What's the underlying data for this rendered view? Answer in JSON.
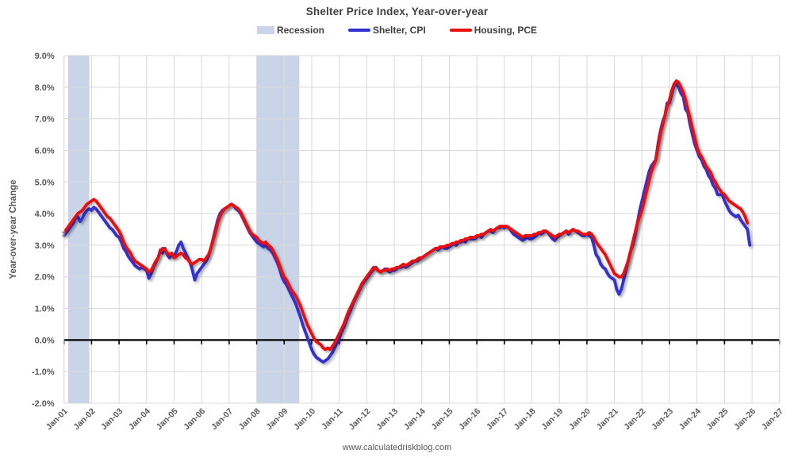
{
  "title": "Shelter Price Index, Year-over-year",
  "footer": "www.calculatedriskblog.com",
  "colors": {
    "recession_band": "#c9d4e8",
    "shelter_cpi": "#3030d0",
    "housing_pce": "#ec0f0f",
    "gridline": "#d9d9d9",
    "zero_line": "#000000",
    "tick_label": "#595959",
    "title_text": "#3f3f3f"
  },
  "legend": [
    {
      "label": "Recession",
      "type": "band",
      "color": "#c9d4e8"
    },
    {
      "label": "Shelter, CPI",
      "type": "line",
      "color": "#3030d0"
    },
    {
      "label": "Housing, PCE",
      "type": "line",
      "color": "#ec0f0f"
    }
  ],
  "y_axis": {
    "label": "Year-over-year Change",
    "min": -2.0,
    "max": 9.0,
    "step": 1.0,
    "ticks": [
      "9.0%",
      "8.0%",
      "7.0%",
      "6.0%",
      "5.0%",
      "4.0%",
      "3.0%",
      "2.0%",
      "1.0%",
      "0.0%",
      "-1.0%",
      "-2.0%"
    ]
  },
  "x_axis": {
    "ticks": [
      "Jan-01",
      "Jan-02",
      "Jan-03",
      "Jan-04",
      "Jan-05",
      "Jan-06",
      "Jan-07",
      "Jan-08",
      "Jan-09",
      "Jan-10",
      "Jan-11",
      "Jan-12",
      "Jan-13",
      "Jan-14",
      "Jan-15",
      "Jan-16",
      "Jan-17",
      "Jan-18",
      "Jan-19",
      "Jan-20",
      "Jan-21",
      "Jan-22",
      "Jan-23",
      "Jan-24",
      "Jan-25",
      "Jan-26",
      "Jan-27"
    ]
  },
  "chart_data": {
    "type": "line",
    "title": "Shelter Price Index, Year-over-year",
    "xlabel": "",
    "ylabel": "Year-over-year Change",
    "xlim": [
      2001,
      2027
    ],
    "ylim": [
      -2.0,
      9.0
    ],
    "grid": true,
    "legend_position": "top",
    "x_start_year": 2001,
    "x_step": "monthly",
    "recession_bands": [
      {
        "start": 2001.15,
        "end": 2001.92
      },
      {
        "start": 2008.0,
        "end": 2009.55
      }
    ],
    "series": [
      {
        "name": "Shelter, CPI",
        "color": "#3030d0",
        "values": [
          3.3,
          3.4,
          3.5,
          3.6,
          3.7,
          3.85,
          3.9,
          3.75,
          3.85,
          4.0,
          4.1,
          4.15,
          4.1,
          4.2,
          4.15,
          4.05,
          3.95,
          3.85,
          3.75,
          3.65,
          3.55,
          3.5,
          3.4,
          3.3,
          3.25,
          3.1,
          2.9,
          2.8,
          2.65,
          2.55,
          2.45,
          2.35,
          2.3,
          2.25,
          2.3,
          2.25,
          2.2,
          1.95,
          2.1,
          2.3,
          2.45,
          2.6,
          2.85,
          2.75,
          2.9,
          2.7,
          2.6,
          2.7,
          2.65,
          2.8,
          3.0,
          3.1,
          2.9,
          2.75,
          2.6,
          2.45,
          2.2,
          1.9,
          2.1,
          2.2,
          2.3,
          2.4,
          2.5,
          2.65,
          2.9,
          3.2,
          3.5,
          3.8,
          4.0,
          4.1,
          4.15,
          4.2,
          4.25,
          4.3,
          4.25,
          4.15,
          4.1,
          4.0,
          3.85,
          3.7,
          3.55,
          3.4,
          3.3,
          3.2,
          3.1,
          3.05,
          3.0,
          2.95,
          3.0,
          2.9,
          2.85,
          2.75,
          2.6,
          2.45,
          2.25,
          2.0,
          1.85,
          1.75,
          1.6,
          1.45,
          1.3,
          1.15,
          0.95,
          0.75,
          0.5,
          0.3,
          0.1,
          -0.1,
          -0.3,
          -0.45,
          -0.55,
          -0.6,
          -0.65,
          -0.7,
          -0.65,
          -0.6,
          -0.5,
          -0.4,
          -0.25,
          -0.1,
          0.05,
          0.25,
          0.4,
          0.6,
          0.8,
          0.95,
          1.15,
          1.3,
          1.45,
          1.6,
          1.75,
          1.85,
          1.95,
          2.05,
          2.15,
          2.25,
          2.3,
          2.2,
          2.15,
          2.2,
          2.25,
          2.2,
          2.15,
          2.2,
          2.2,
          2.25,
          2.3,
          2.3,
          2.35,
          2.3,
          2.35,
          2.4,
          2.45,
          2.5,
          2.5,
          2.55,
          2.6,
          2.65,
          2.7,
          2.75,
          2.8,
          2.85,
          2.9,
          2.85,
          2.9,
          2.95,
          2.9,
          2.9,
          2.95,
          3.0,
          3.05,
          3.0,
          3.1,
          3.1,
          3.15,
          3.1,
          3.2,
          3.2,
          3.2,
          3.2,
          3.25,
          3.3,
          3.25,
          3.35,
          3.4,
          3.45,
          3.45,
          3.4,
          3.5,
          3.55,
          3.55,
          3.6,
          3.55,
          3.6,
          3.55,
          3.45,
          3.35,
          3.3,
          3.25,
          3.2,
          3.15,
          3.2,
          3.25,
          3.2,
          3.2,
          3.25,
          3.3,
          3.4,
          3.35,
          3.4,
          3.45,
          3.4,
          3.3,
          3.2,
          3.15,
          3.25,
          3.3,
          3.35,
          3.4,
          3.45,
          3.35,
          3.45,
          3.5,
          3.45,
          3.4,
          3.35,
          3.3,
          3.3,
          3.35,
          3.3,
          3.25,
          3.0,
          2.7,
          2.6,
          2.4,
          2.3,
          2.25,
          2.1,
          2.0,
          1.95,
          1.9,
          1.6,
          1.45,
          1.6,
          1.9,
          2.2,
          2.5,
          2.8,
          3.0,
          3.3,
          3.7,
          4.1,
          4.4,
          4.7,
          5.0,
          5.3,
          5.5,
          5.6,
          5.7,
          6.2,
          6.6,
          6.9,
          7.1,
          7.5,
          7.5,
          7.8,
          8.05,
          8.1,
          8.0,
          7.8,
          7.7,
          7.3,
          7.2,
          6.8,
          6.5,
          6.2,
          6.0,
          5.8,
          5.7,
          5.5,
          5.4,
          5.2,
          5.1,
          4.9,
          4.8,
          4.6,
          4.6,
          4.6,
          4.4,
          4.25,
          4.1,
          4.0,
          3.95,
          3.9,
          3.95,
          3.8,
          3.7,
          3.6,
          3.5,
          3.0
        ]
      },
      {
        "name": "Housing, PCE",
        "color": "#ec0f0f",
        "values": [
          3.4,
          3.5,
          3.6,
          3.7,
          3.8,
          3.9,
          4.0,
          4.05,
          4.1,
          4.2,
          4.3,
          4.35,
          4.4,
          4.45,
          4.4,
          4.3,
          4.2,
          4.1,
          4.0,
          3.9,
          3.85,
          3.75,
          3.65,
          3.55,
          3.45,
          3.3,
          3.1,
          2.95,
          2.85,
          2.75,
          2.6,
          2.5,
          2.45,
          2.4,
          2.35,
          2.3,
          2.25,
          2.15,
          2.2,
          2.35,
          2.5,
          2.6,
          2.8,
          2.9,
          2.85,
          2.75,
          2.7,
          2.75,
          2.6,
          2.65,
          2.7,
          2.75,
          2.7,
          2.6,
          2.55,
          2.45,
          2.4,
          2.45,
          2.5,
          2.55,
          2.55,
          2.5,
          2.6,
          2.7,
          2.9,
          3.15,
          3.4,
          3.7,
          3.9,
          4.05,
          4.15,
          4.2,
          4.25,
          4.3,
          4.25,
          4.2,
          4.15,
          4.05,
          3.9,
          3.75,
          3.6,
          3.45,
          3.35,
          3.3,
          3.25,
          3.15,
          3.1,
          3.05,
          3.1,
          3.0,
          2.95,
          2.85,
          2.7,
          2.55,
          2.35,
          2.15,
          2.0,
          1.9,
          1.75,
          1.6,
          1.5,
          1.4,
          1.25,
          1.1,
          0.9,
          0.7,
          0.5,
          0.35,
          0.2,
          0.05,
          -0.05,
          -0.1,
          -0.15,
          -0.25,
          -0.3,
          -0.25,
          -0.3,
          -0.2,
          -0.1,
          0.05,
          0.2,
          0.35,
          0.5,
          0.7,
          0.9,
          1.05,
          1.2,
          1.35,
          1.5,
          1.65,
          1.8,
          1.9,
          2.0,
          2.1,
          2.2,
          2.3,
          2.25,
          2.2,
          2.15,
          2.2,
          2.2,
          2.25,
          2.2,
          2.25,
          2.25,
          2.3,
          2.3,
          2.35,
          2.4,
          2.35,
          2.4,
          2.45,
          2.5,
          2.5,
          2.55,
          2.6,
          2.6,
          2.65,
          2.7,
          2.75,
          2.8,
          2.85,
          2.9,
          2.9,
          2.95,
          2.95,
          2.95,
          3.0,
          3.0,
          3.05,
          3.05,
          3.1,
          3.1,
          3.15,
          3.15,
          3.2,
          3.2,
          3.25,
          3.25,
          3.25,
          3.3,
          3.3,
          3.35,
          3.35,
          3.4,
          3.45,
          3.5,
          3.45,
          3.5,
          3.55,
          3.6,
          3.6,
          3.6,
          3.6,
          3.55,
          3.5,
          3.45,
          3.4,
          3.35,
          3.3,
          3.25,
          3.3,
          3.3,
          3.3,
          3.3,
          3.35,
          3.35,
          3.4,
          3.4,
          3.45,
          3.45,
          3.4,
          3.35,
          3.3,
          3.25,
          3.3,
          3.35,
          3.35,
          3.4,
          3.45,
          3.4,
          3.45,
          3.5,
          3.45,
          3.45,
          3.4,
          3.35,
          3.35,
          3.35,
          3.4,
          3.35,
          3.25,
          3.1,
          3.0,
          2.9,
          2.8,
          2.7,
          2.55,
          2.4,
          2.25,
          2.1,
          2.05,
          2.0,
          2.0,
          2.1,
          2.3,
          2.5,
          2.8,
          3.1,
          3.4,
          3.7,
          3.9,
          4.1,
          4.4,
          4.7,
          5.0,
          5.3,
          5.5,
          5.7,
          6.1,
          6.5,
          6.8,
          7.1,
          7.4,
          7.6,
          7.9,
          8.1,
          8.2,
          8.15,
          8.0,
          7.85,
          7.6,
          7.3,
          7.0,
          6.7,
          6.4,
          6.1,
          5.9,
          5.8,
          5.65,
          5.5,
          5.4,
          5.3,
          5.1,
          5.0,
          4.85,
          4.75,
          4.65,
          4.6,
          4.5,
          4.4,
          4.35,
          4.3,
          4.25,
          4.2,
          4.15,
          4.05,
          3.9,
          3.7
        ]
      }
    ]
  }
}
